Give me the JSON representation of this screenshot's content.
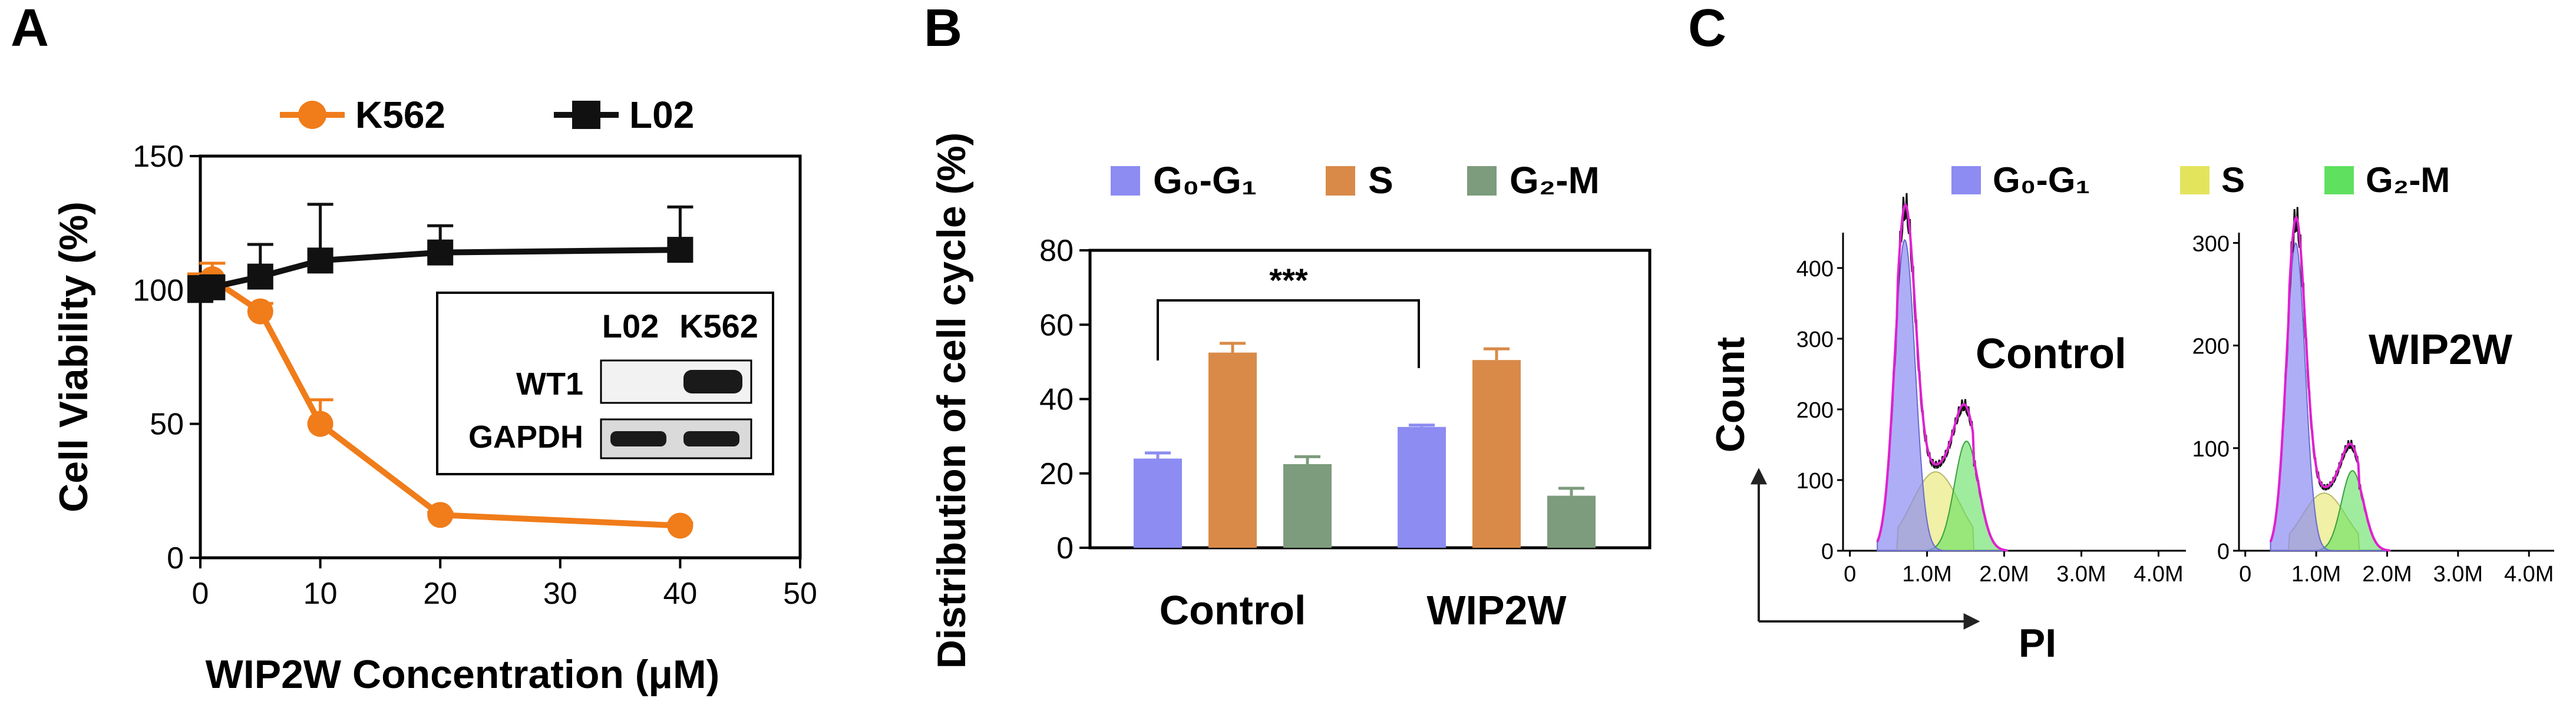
{
  "chart_data": [
    {
      "panel_label": "A",
      "type": "line",
      "title": "",
      "xlabel": "WIP2W Concentration (μM)",
      "ylabel": "Cell Viability (%)",
      "xlim": [
        0,
        50
      ],
      "ylim": [
        0,
        150
      ],
      "x_ticks": [
        "0",
        "10",
        "20",
        "30",
        "40",
        "50"
      ],
      "y_ticks": [
        "0",
        "50",
        "100",
        "150"
      ],
      "legend_position": "top",
      "series": [
        {
          "name": "K562",
          "color": "#f07c1a",
          "marker": "circle",
          "x": [
            0,
            1,
            5,
            10,
            20,
            40
          ],
          "y": [
            100,
            104,
            92,
            50,
            16,
            12
          ],
          "err": [
            6,
            6,
            3,
            9,
            1,
            1
          ]
        },
        {
          "name": "L02",
          "color": "#111111",
          "marker": "square",
          "x": [
            0,
            1,
            5,
            10,
            20,
            40
          ],
          "y": [
            100,
            101,
            105,
            111,
            114,
            115
          ],
          "err": [
            5,
            4,
            12,
            21,
            10,
            16
          ]
        }
      ],
      "inset_blot": {
        "columns": [
          "L02",
          "K562"
        ],
        "rows": [
          "WT1",
          "GAPDH"
        ]
      }
    },
    {
      "panel_label": "B",
      "type": "bar",
      "title": "",
      "xlabel": "",
      "ylabel": "Distribution of cell cycle (%)",
      "ylim": [
        0,
        80
      ],
      "y_ticks": [
        "0",
        "20",
        "40",
        "60",
        "80"
      ],
      "categories": [
        "Control",
        "WIP2W"
      ],
      "legend_position": "top",
      "series": [
        {
          "name": "G₀-G₁",
          "color": "#8c8cf2",
          "values": [
            24,
            32.5
          ],
          "err": [
            1.5,
            0.5
          ]
        },
        {
          "name": "S",
          "color": "#d98a48",
          "values": [
            52.5,
            50.5
          ],
          "err": [
            2.5,
            3
          ]
        },
        {
          "name": "G₂-M",
          "color": "#7d9b7d",
          "values": [
            22.5,
            14
          ],
          "err": [
            2,
            2
          ]
        }
      ],
      "annotation": "***"
    },
    {
      "panel_label": "C",
      "type": "area",
      "title": "",
      "ylabel": "Count",
      "xlabel": "PI",
      "legend_position": "top",
      "legend": [
        {
          "name": "G₀-G₁",
          "color": "#8c8cf2"
        },
        {
          "name": "S",
          "color": "#e4e45c"
        },
        {
          "name": "G₂-M",
          "color": "#5fe05f"
        }
      ],
      "x_ticks": [
        "0",
        "1.0M",
        "2.0M",
        "3.0M",
        "4.0M"
      ],
      "histograms": [
        {
          "name": "Control",
          "ylim": [
            0,
            450
          ],
          "y_ticks": [
            "0",
            "100",
            "200",
            "300",
            "400"
          ],
          "peak_g1": 440,
          "peak_g2": 155
        },
        {
          "name": "WIP2W",
          "ylim": [
            0,
            310
          ],
          "y_ticks": [
            "0",
            "100",
            "200",
            "300"
          ],
          "peak_g1": 300,
          "peak_g2": 78
        }
      ]
    }
  ]
}
